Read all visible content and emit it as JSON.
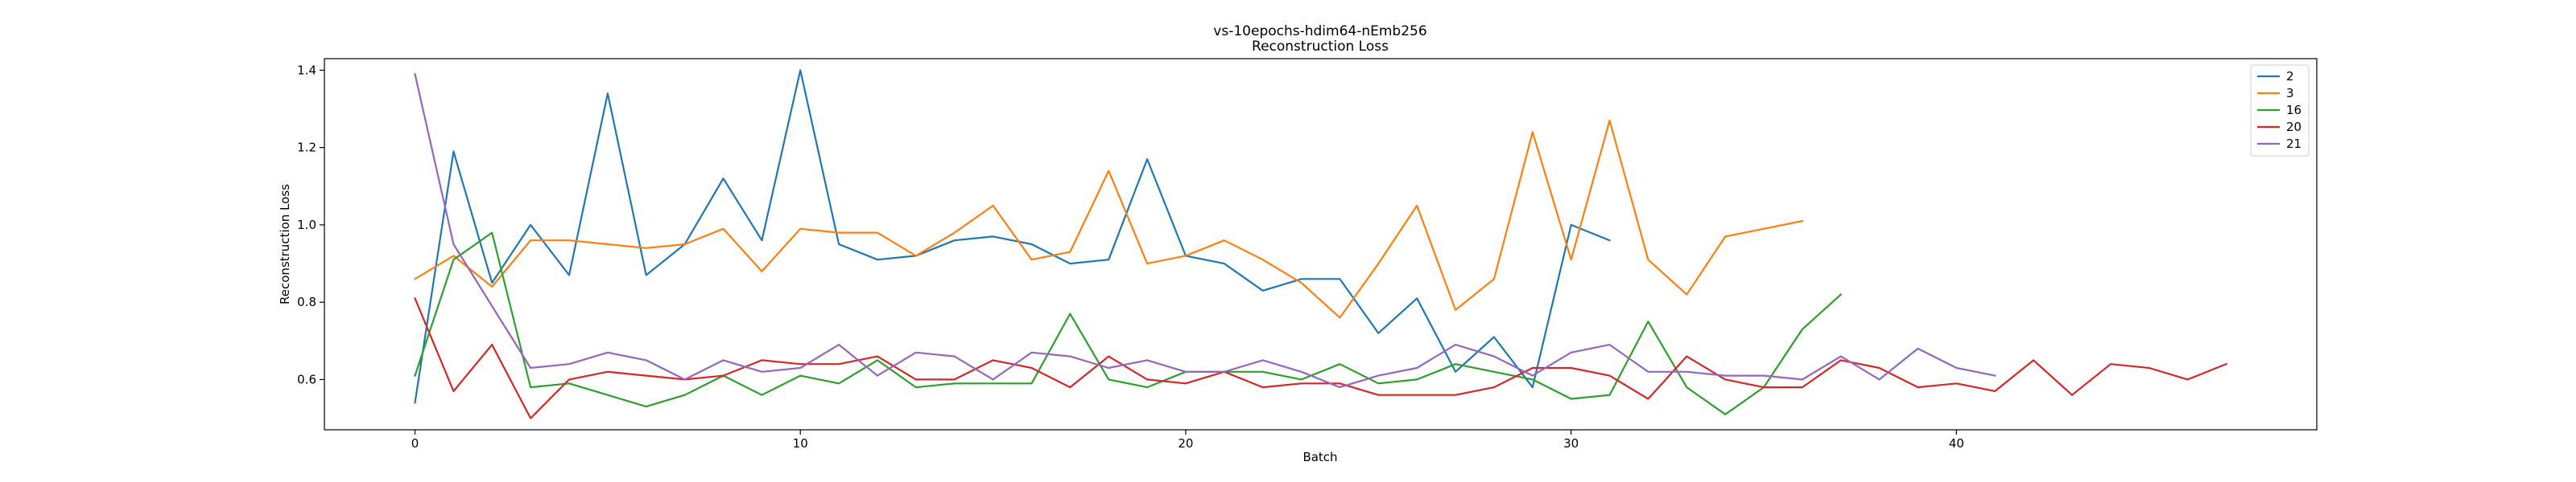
{
  "chart_data": {
    "type": "line",
    "title": "vs-10epochs-hdim64-nEmb256",
    "subtitle": "Reconstruction Loss",
    "xlabel": "Batch",
    "ylabel": "Reconstruction Loss",
    "xlim": [
      -2.35,
      49.35
    ],
    "ylim": [
      0.47,
      1.43
    ],
    "xticks": [
      0,
      10,
      20,
      30,
      40
    ],
    "yticks": [
      0.6,
      0.8,
      1.0,
      1.2,
      1.4
    ],
    "ytick_labels": [
      "0.6",
      "0.8",
      "1.0",
      "1.2",
      "1.4"
    ],
    "grid": false,
    "legend_position": "top-right",
    "series": [
      {
        "name": "2",
        "color": "#1f77b4",
        "values": [
          0.54,
          1.19,
          0.85,
          1.0,
          0.87,
          1.34,
          0.87,
          0.95,
          1.12,
          0.96,
          1.4,
          0.95,
          0.91,
          0.92,
          0.96,
          0.97,
          0.95,
          0.9,
          0.91,
          1.17,
          0.92,
          0.9,
          0.83,
          0.86,
          0.86,
          0.72,
          0.81,
          0.62,
          0.71,
          0.58,
          1.0,
          0.96
        ]
      },
      {
        "name": "3",
        "color": "#ff7f0e",
        "values": [
          0.86,
          0.92,
          0.84,
          0.96,
          0.96,
          0.95,
          0.94,
          0.95,
          0.99,
          0.88,
          0.99,
          0.98,
          0.98,
          0.92,
          0.98,
          1.05,
          0.91,
          0.93,
          1.14,
          0.9,
          0.92,
          0.96,
          0.91,
          0.85,
          0.76,
          0.9,
          1.05,
          0.78,
          0.86,
          1.24,
          0.91,
          1.27,
          0.91,
          0.82,
          0.97,
          0.99,
          1.01
        ]
      },
      {
        "name": "16",
        "color": "#2ca02c",
        "values": [
          0.61,
          0.91,
          0.98,
          0.58,
          0.59,
          0.56,
          0.53,
          0.56,
          0.61,
          0.56,
          0.61,
          0.59,
          0.65,
          0.58,
          0.59,
          0.59,
          0.59,
          0.77,
          0.6,
          0.58,
          0.62,
          0.62,
          0.62,
          0.6,
          0.64,
          0.59,
          0.6,
          0.64,
          0.62,
          0.6,
          0.55,
          0.56,
          0.75,
          0.58,
          0.51,
          0.58,
          0.73,
          0.82
        ]
      },
      {
        "name": "20",
        "color": "#d62728",
        "values": [
          0.81,
          0.57,
          0.69,
          0.5,
          0.6,
          0.62,
          0.61,
          0.6,
          0.61,
          0.65,
          0.64,
          0.64,
          0.66,
          0.6,
          0.6,
          0.65,
          0.63,
          0.58,
          0.66,
          0.6,
          0.59,
          0.62,
          0.58,
          0.59,
          0.59,
          0.56,
          0.56,
          0.56,
          0.58,
          0.63,
          0.63,
          0.61,
          0.55,
          0.66,
          0.6,
          0.58,
          0.58,
          0.65,
          0.63,
          0.58,
          0.59,
          0.57,
          0.65,
          0.56,
          0.64,
          0.63,
          0.6,
          0.64
        ]
      },
      {
        "name": "21",
        "color": "#9467bd",
        "values": [
          1.39,
          0.95,
          0.79,
          0.63,
          0.64,
          0.67,
          0.65,
          0.6,
          0.65,
          0.62,
          0.63,
          0.69,
          0.61,
          0.67,
          0.66,
          0.6,
          0.67,
          0.66,
          0.63,
          0.65,
          0.62,
          0.62,
          0.65,
          0.62,
          0.58,
          0.61,
          0.63,
          0.69,
          0.66,
          0.61,
          0.67,
          0.69,
          0.62,
          0.62,
          0.61,
          0.61,
          0.6,
          0.66,
          0.6,
          0.68,
          0.63,
          0.61
        ]
      }
    ]
  }
}
